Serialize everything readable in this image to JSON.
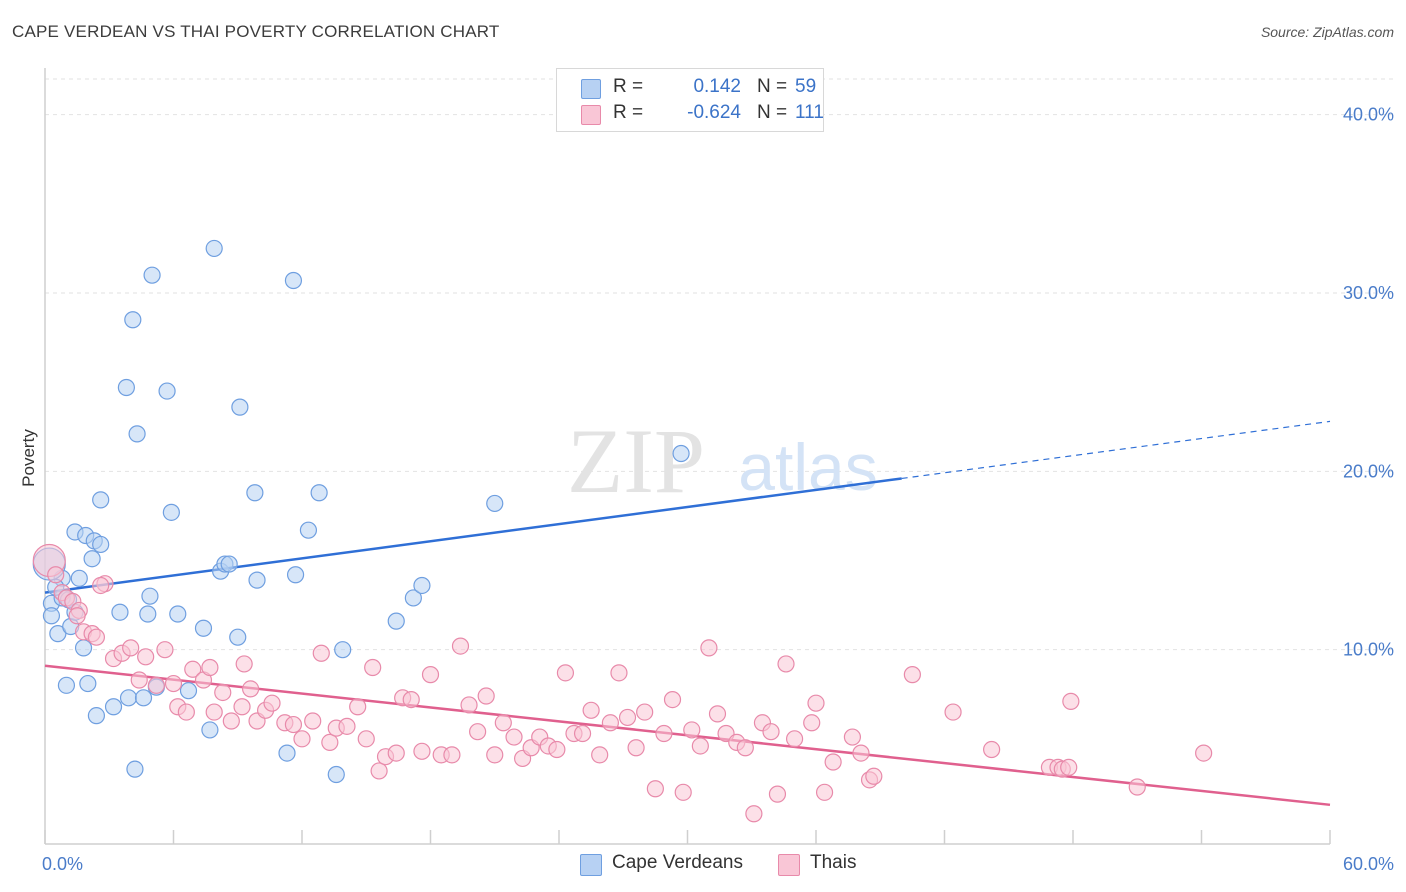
{
  "header": {
    "title": "CAPE VERDEAN VS THAI POVERTY CORRELATION CHART",
    "source": "Source: ZipAtlas.com"
  },
  "watermark": {
    "zip": "ZIP",
    "atlas": "atlas"
  },
  "legend": {
    "r_label": "R =",
    "n_label": "N =",
    "rows": [
      {
        "r": "0.142",
        "n": "59",
        "swatch_fill": "#b7d1f3",
        "swatch_border": "#6f9fe0"
      },
      {
        "r": "-0.624",
        "n": "111",
        "swatch_fill": "#f9c6d6",
        "swatch_border": "#e88aaa"
      }
    ]
  },
  "bottom_legend": [
    {
      "label": "Cape Verdeans",
      "swatch_fill": "#b7d1f3",
      "swatch_border": "#6f9fe0"
    },
    {
      "label": "Thais",
      "swatch_fill": "#f9c6d6",
      "swatch_border": "#e88aaa"
    }
  ],
  "chart_data": {
    "type": "scatter",
    "title": "CAPE VERDEAN VS THAI POVERTY CORRELATION CHART",
    "xlabel": "",
    "ylabel": "Poverty",
    "xlim": [
      0,
      60
    ],
    "ylim": [
      0,
      42
    ],
    "x_tick_labels": [
      "0.0%",
      "60.0%"
    ],
    "y_ticks": [
      10,
      20,
      30,
      40
    ],
    "y_tick_labels": [
      "10.0%",
      "20.0%",
      "30.0%",
      "40.0%"
    ],
    "grid": true,
    "colors": {
      "cape_verdeans": "#2f6fd6",
      "thais": "#e0608e"
    },
    "series": [
      {
        "name": "Cape Verdeans",
        "marker_fill": "#b7d1f3",
        "marker_stroke": "#6f9fe0",
        "points": [
          [
            0.3,
            12.6
          ],
          [
            0.3,
            11.9
          ],
          [
            0.6,
            10.9
          ],
          [
            0.8,
            12.9
          ],
          [
            0.8,
            14.0
          ],
          [
            1.0,
            8.0
          ],
          [
            1.2,
            11.3
          ],
          [
            1.4,
            12.1
          ],
          [
            1.4,
            16.6
          ],
          [
            1.6,
            14.0
          ],
          [
            1.8,
            10.1
          ],
          [
            1.9,
            16.4
          ],
          [
            2.0,
            8.1
          ],
          [
            2.2,
            15.1
          ],
          [
            2.3,
            16.1
          ],
          [
            2.4,
            6.3
          ],
          [
            2.6,
            18.4
          ],
          [
            2.6,
            15.9
          ],
          [
            3.2,
            6.8
          ],
          [
            3.5,
            12.1
          ],
          [
            3.8,
            24.7
          ],
          [
            3.9,
            7.3
          ],
          [
            4.1,
            28.5
          ],
          [
            4.2,
            3.3
          ],
          [
            4.3,
            22.1
          ],
          [
            4.6,
            7.3
          ],
          [
            4.8,
            12.0
          ],
          [
            4.9,
            13.0
          ],
          [
            5.0,
            31.0
          ],
          [
            5.2,
            7.9
          ],
          [
            5.7,
            24.5
          ],
          [
            5.9,
            17.7
          ],
          [
            6.2,
            12.0
          ],
          [
            6.7,
            7.7
          ],
          [
            7.4,
            11.2
          ],
          [
            7.7,
            5.5
          ],
          [
            7.9,
            32.5
          ],
          [
            8.2,
            14.4
          ],
          [
            8.4,
            14.8
          ],
          [
            8.6,
            14.8
          ],
          [
            9.0,
            10.7
          ],
          [
            9.1,
            23.6
          ],
          [
            9.8,
            18.8
          ],
          [
            9.9,
            13.9
          ],
          [
            11.3,
            4.2
          ],
          [
            11.6,
            30.7
          ],
          [
            11.7,
            14.2
          ],
          [
            12.3,
            16.7
          ],
          [
            12.8,
            18.8
          ],
          [
            13.6,
            3.0
          ],
          [
            13.9,
            10.0
          ],
          [
            16.4,
            11.6
          ],
          [
            17.2,
            12.9
          ],
          [
            17.6,
            13.6
          ],
          [
            21.0,
            18.2
          ],
          [
            29.7,
            21.0
          ],
          [
            0.2,
            14.8
          ],
          [
            0.5,
            13.5
          ],
          [
            1.1,
            12.8
          ]
        ]
      },
      {
        "name": "Thais",
        "marker_fill": "#f9c6d6",
        "marker_stroke": "#e88aaa",
        "points": [
          [
            0.2,
            15.0
          ],
          [
            0.5,
            14.2
          ],
          [
            0.8,
            13.2
          ],
          [
            1.0,
            12.9
          ],
          [
            1.3,
            12.7
          ],
          [
            1.6,
            12.2
          ],
          [
            1.8,
            11.0
          ],
          [
            2.2,
            10.9
          ],
          [
            2.4,
            10.7
          ],
          [
            2.8,
            13.7
          ],
          [
            3.2,
            9.5
          ],
          [
            3.6,
            9.8
          ],
          [
            4.0,
            10.1
          ],
          [
            4.4,
            8.3
          ],
          [
            4.7,
            9.6
          ],
          [
            5.2,
            8.0
          ],
          [
            5.6,
            10.0
          ],
          [
            6.0,
            8.1
          ],
          [
            6.2,
            6.8
          ],
          [
            6.6,
            6.5
          ],
          [
            6.9,
            8.9
          ],
          [
            7.4,
            8.3
          ],
          [
            7.7,
            9.0
          ],
          [
            7.9,
            6.5
          ],
          [
            8.3,
            7.6
          ],
          [
            8.7,
            6.0
          ],
          [
            9.3,
            9.2
          ],
          [
            9.6,
            7.8
          ],
          [
            9.9,
            6.0
          ],
          [
            10.3,
            6.6
          ],
          [
            10.6,
            7.0
          ],
          [
            11.2,
            5.9
          ],
          [
            11.6,
            5.8
          ],
          [
            12.0,
            5.0
          ],
          [
            12.5,
            6.0
          ],
          [
            12.9,
            9.8
          ],
          [
            13.3,
            4.8
          ],
          [
            13.6,
            5.6
          ],
          [
            14.1,
            5.7
          ],
          [
            14.6,
            6.8
          ],
          [
            15.0,
            5.0
          ],
          [
            15.3,
            9.0
          ],
          [
            15.6,
            3.2
          ],
          [
            15.9,
            4.0
          ],
          [
            16.4,
            4.2
          ],
          [
            16.7,
            7.3
          ],
          [
            17.1,
            7.2
          ],
          [
            17.6,
            4.3
          ],
          [
            18.0,
            8.6
          ],
          [
            18.5,
            4.1
          ],
          [
            19.0,
            4.1
          ],
          [
            19.4,
            10.2
          ],
          [
            19.8,
            6.9
          ],
          [
            20.2,
            5.4
          ],
          [
            20.6,
            7.4
          ],
          [
            21.0,
            4.1
          ],
          [
            21.4,
            5.9
          ],
          [
            21.9,
            5.1
          ],
          [
            22.3,
            3.9
          ],
          [
            22.7,
            4.5
          ],
          [
            23.1,
            5.1
          ],
          [
            23.5,
            4.6
          ],
          [
            23.9,
            4.4
          ],
          [
            24.3,
            8.7
          ],
          [
            24.7,
            5.3
          ],
          [
            25.1,
            5.3
          ],
          [
            25.5,
            6.6
          ],
          [
            25.9,
            4.1
          ],
          [
            26.4,
            5.9
          ],
          [
            26.8,
            8.7
          ],
          [
            27.2,
            6.2
          ],
          [
            27.6,
            4.5
          ],
          [
            28.0,
            6.5
          ],
          [
            28.5,
            2.2
          ],
          [
            28.9,
            5.3
          ],
          [
            29.3,
            7.2
          ],
          [
            29.8,
            2.0
          ],
          [
            30.2,
            5.5
          ],
          [
            30.6,
            4.6
          ],
          [
            31.0,
            10.1
          ],
          [
            31.4,
            6.4
          ],
          [
            31.8,
            5.3
          ],
          [
            32.3,
            4.8
          ],
          [
            32.7,
            4.5
          ],
          [
            33.1,
            0.8
          ],
          [
            33.5,
            5.9
          ],
          [
            33.9,
            5.4
          ],
          [
            34.2,
            1.9
          ],
          [
            34.6,
            9.2
          ],
          [
            35.0,
            5.0
          ],
          [
            35.8,
            5.9
          ],
          [
            36.0,
            7.0
          ],
          [
            36.4,
            2.0
          ],
          [
            36.8,
            3.7
          ],
          [
            37.7,
            5.1
          ],
          [
            38.1,
            4.2
          ],
          [
            38.5,
            2.7
          ],
          [
            38.7,
            2.9
          ],
          [
            40.5,
            8.6
          ],
          [
            42.4,
            6.5
          ],
          [
            44.2,
            4.4
          ],
          [
            46.9,
            3.4
          ],
          [
            47.3,
            3.4
          ],
          [
            47.5,
            3.3
          ],
          [
            47.8,
            3.4
          ],
          [
            47.9,
            7.1
          ],
          [
            51.0,
            2.3
          ],
          [
            54.1,
            4.2
          ],
          [
            2.6,
            13.6
          ],
          [
            1.5,
            11.9
          ],
          [
            9.2,
            6.8
          ]
        ]
      }
    ],
    "trend_lines": [
      {
        "series": "Cape Verdeans",
        "x0": 0,
        "y0": 13.2,
        "x1": 40,
        "y1": 19.6,
        "dashed_to_x": 60,
        "dashed_to_y": 22.8
      },
      {
        "series": "Thais",
        "x0": 0,
        "y0": 9.1,
        "x1": 60,
        "y1": 1.3
      }
    ]
  }
}
